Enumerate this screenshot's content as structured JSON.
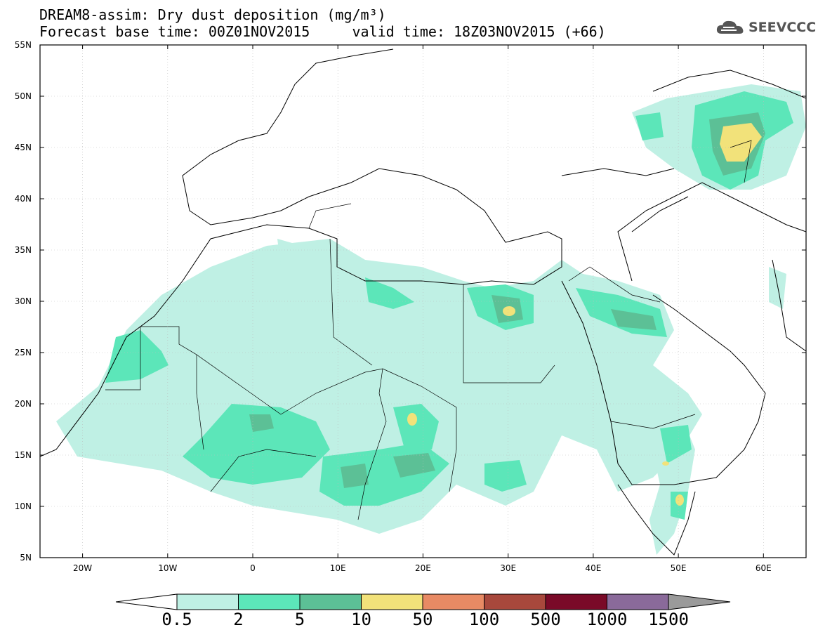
{
  "title_line1": "DREAM8-assim: Dry dust deposition (mg/m³)",
  "title_line2": "Forecast base time: 00Z01NOV2015     valid time: 18Z03NOV2015 (+66)",
  "logo_text": "SEEVCCC",
  "map": {
    "lon_range": [
      -25,
      65
    ],
    "lat_range": [
      5,
      55
    ],
    "lat_tick_labels": [
      "55N",
      "50N",
      "45N",
      "40N",
      "35N",
      "30N",
      "25N",
      "20N",
      "15N",
      "10N",
      "5N"
    ],
    "lon_tick_labels": [
      "20W",
      "10W",
      "0",
      "10E",
      "20E",
      "30E",
      "40E",
      "50E",
      "60E"
    ]
  },
  "colorbar": {
    "labels": [
      "0.5",
      "2",
      "5",
      "10",
      "50",
      "100",
      "500",
      "1000",
      "1500"
    ],
    "colors": [
      "#bff0e4",
      "#5ce6b9",
      "#5cc096",
      "#f2e27a",
      "#e88a64",
      "#a8483c",
      "#7a0a28",
      "#8a6a9a",
      "#9a9a9a"
    ]
  }
}
